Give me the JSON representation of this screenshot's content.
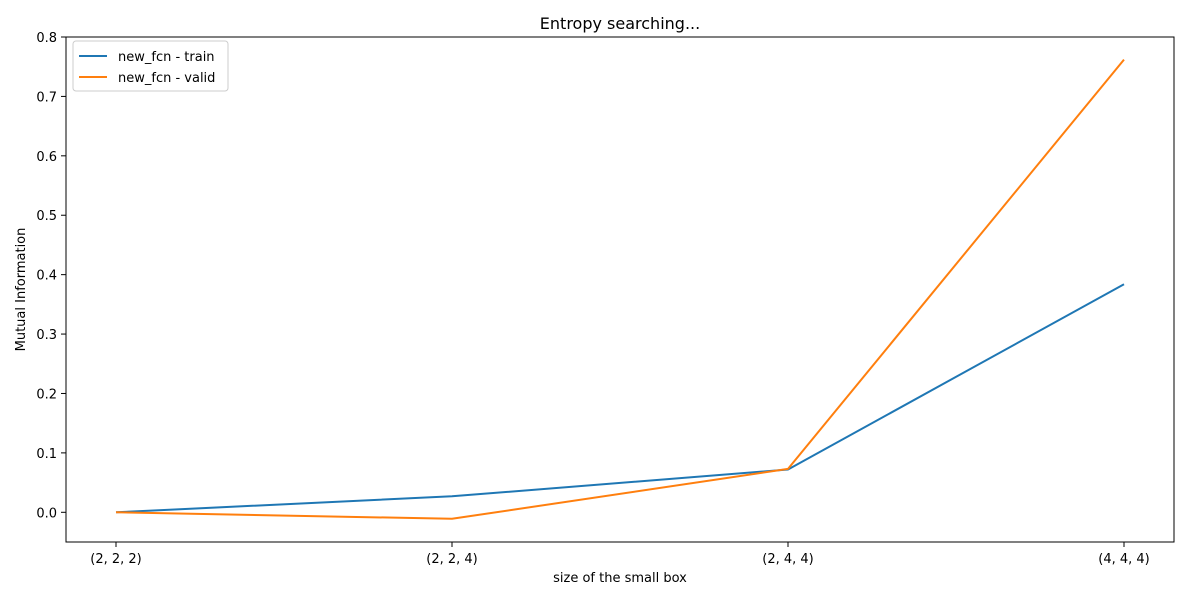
{
  "chart_data": {
    "type": "line",
    "title": "Entropy searching...",
    "xlabel": "size of the small box",
    "ylabel": "Mutual Information",
    "categories": [
      "(2, 2, 2)",
      "(2, 2, 4)",
      "(2, 4, 4)",
      "(4, 4, 4)"
    ],
    "ylim": [
      -0.05,
      0.8
    ],
    "yticks": [
      0.0,
      0.1,
      0.2,
      0.3,
      0.4,
      0.5,
      0.6,
      0.7,
      0.8
    ],
    "ytick_labels": [
      "0.0",
      "0.1",
      "0.2",
      "0.3",
      "0.4",
      "0.5",
      "0.6",
      "0.7",
      "0.8"
    ],
    "grid": false,
    "legend_position": "top-left",
    "series": [
      {
        "name": "new_fcn - train",
        "color": "#1f77b4",
        "values": [
          0.0,
          0.027,
          0.072,
          0.384
        ]
      },
      {
        "name": "new_fcn - valid",
        "color": "#ff7f0e",
        "values": [
          0.0,
          -0.011,
          0.073,
          0.762
        ]
      }
    ]
  }
}
